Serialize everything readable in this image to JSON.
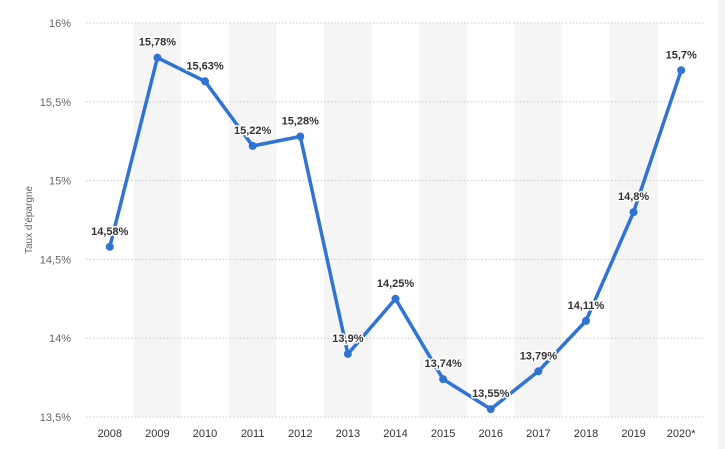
{
  "chart_data": {
    "type": "line",
    "title": "",
    "xlabel": "",
    "ylabel": "Taux d'épargne",
    "categories": [
      "2008",
      "2009",
      "2010",
      "2011",
      "2012",
      "2013",
      "2014",
      "2015",
      "2016",
      "2017",
      "2018",
      "2019",
      "2020*"
    ],
    "series": [
      {
        "values": [
          14.58,
          15.78,
          15.63,
          15.22,
          15.28,
          13.9,
          14.25,
          13.74,
          13.55,
          13.79,
          14.11,
          14.8,
          15.7
        ],
        "labels": [
          "14,58%",
          "15,78%",
          "15,63%",
          "15,22%",
          "15,28%",
          "13,9%",
          "14,25%",
          "13,74%",
          "13,55%",
          "13,79%",
          "14,11%",
          "14,8%",
          "15,7%"
        ]
      }
    ],
    "ylim": [
      13.5,
      16
    ],
    "yticks": [
      {
        "value": 13.5,
        "label": "13,5%"
      },
      {
        "value": 14,
        "label": "14%"
      },
      {
        "value": 14.5,
        "label": "14,5%"
      },
      {
        "value": 15,
        "label": "15%"
      },
      {
        "value": 15.5,
        "label": "15,5%"
      },
      {
        "value": 16,
        "label": "16%"
      }
    ],
    "grid": true,
    "legend": "none",
    "colors": {
      "line": "#2f74d4",
      "band": "#f5f5f5",
      "grid": "#c8c8c8"
    }
  }
}
